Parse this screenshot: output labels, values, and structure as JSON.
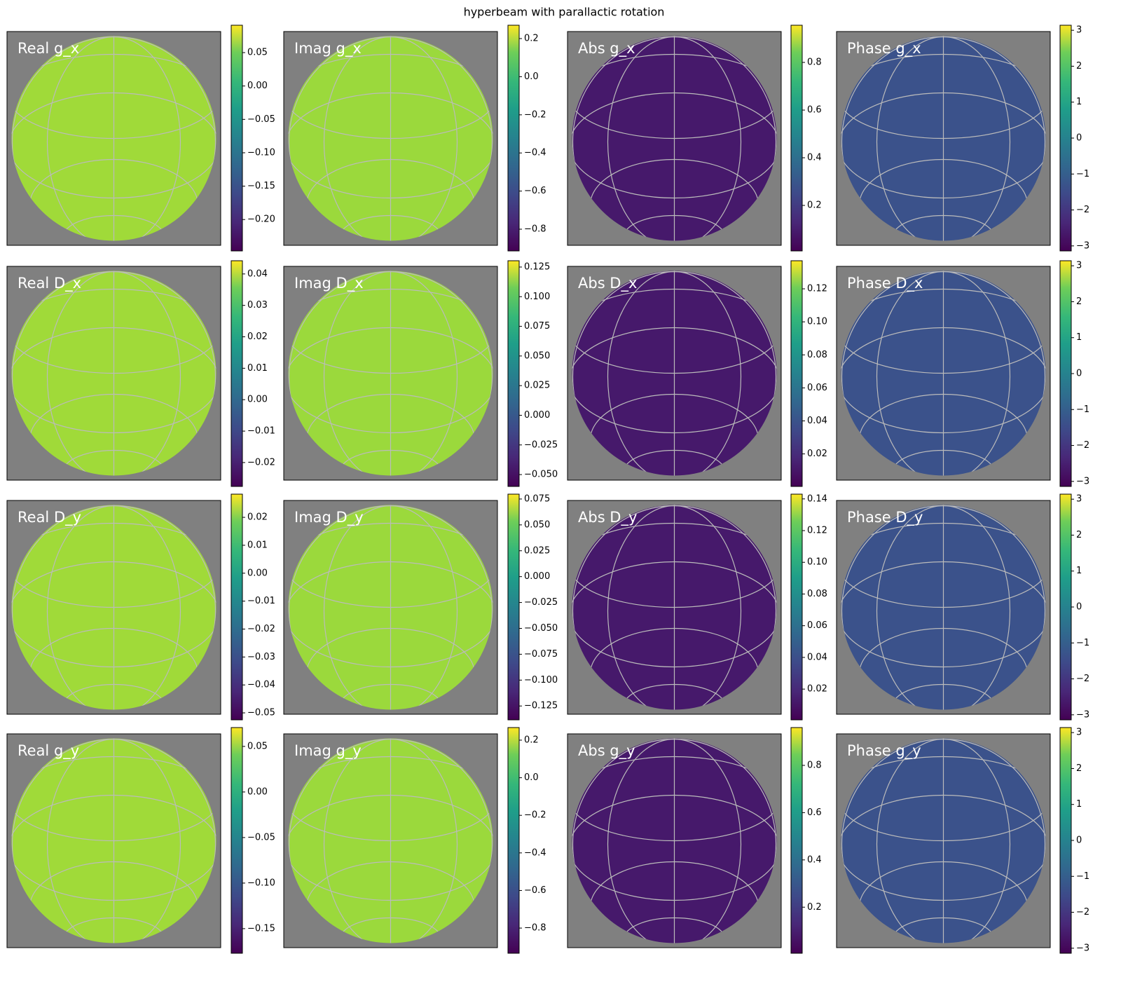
{
  "title": "hyperbeam with parallactic rotation",
  "chart_data": [
    {
      "type": "image",
      "title": "Real g_x",
      "colormap": "viridis",
      "clim": [
        -0.247,
        0.091
      ],
      "cticks": [
        {
          "value": 0.05,
          "label": "0.05"
        },
        {
          "value": 0,
          "label": "0.00"
        },
        {
          "value": -0.05,
          "label": "−0.05"
        },
        {
          "value": -0.1,
          "label": "−0.10"
        },
        {
          "value": -0.15,
          "label": "−0.15"
        },
        {
          "value": -0.2,
          "label": "−0.20"
        }
      ]
    },
    {
      "type": "image",
      "title": "Imag g_x",
      "colormap": "viridis",
      "clim": [
        -0.914,
        0.27
      ],
      "cticks": [
        0.2,
        {
          "value": 0,
          "label": "0.0"
        },
        {
          "value": -0.2,
          "label": "−0.2"
        },
        {
          "value": -0.4,
          "label": "−0.4"
        },
        {
          "value": -0.6,
          "label": "−0.6"
        },
        {
          "value": -0.8,
          "label": "−0.8"
        }
      ]
    },
    {
      "type": "image",
      "title": "Abs g_x",
      "colormap": "viridis",
      "clim": [
        0.009,
        0.956
      ],
      "cticks": [
        0.8,
        0.6,
        0.4,
        0.2
      ]
    },
    {
      "type": "image",
      "title": "Phase g_x",
      "colormap": "viridis",
      "clim": [
        -3.14,
        3.14
      ],
      "cticks": [
        3,
        2,
        1,
        0,
        {
          "value": -1,
          "label": "−1"
        },
        {
          "value": -2,
          "label": "−2"
        },
        {
          "value": -3,
          "label": "−3"
        }
      ]
    },
    {
      "type": "image",
      "title": "Real D_x",
      "colormap": "viridis",
      "clim": [
        -0.0276,
        0.0442
      ],
      "cticks": [
        0.04,
        0.03,
        0.02,
        0.01,
        {
          "value": 0,
          "label": "0.00"
        },
        {
          "value": -0.01,
          "label": "−0.01"
        },
        {
          "value": -0.02,
          "label": "−0.02"
        }
      ]
    },
    {
      "type": "image",
      "title": "Imag D_x",
      "colormap": "viridis",
      "clim": [
        -0.06,
        0.1303
      ],
      "cticks": [
        0.125,
        {
          "value": 0.1,
          "label": "0.100"
        },
        0.075,
        {
          "value": 0.05,
          "label": "0.050"
        },
        0.025,
        {
          "value": 0,
          "label": "0.000"
        },
        {
          "value": -0.025,
          "label": "−0.025"
        },
        {
          "value": -0.05,
          "label": "−0.050"
        }
      ]
    },
    {
      "type": "image",
      "title": "Abs D_x",
      "colormap": "viridis",
      "clim": [
        0.0003,
        0.137
      ],
      "cticks": [
        0.12,
        {
          "value": 0.1,
          "label": "0.10"
        },
        0.08,
        0.06,
        0.04,
        0.02
      ]
    },
    {
      "type": "image",
      "title": "Phase D_x",
      "colormap": "viridis",
      "clim": [
        -3.14,
        3.14
      ],
      "cticks": [
        3,
        2,
        1,
        0,
        {
          "value": -1,
          "label": "−1"
        },
        {
          "value": -2,
          "label": "−2"
        },
        {
          "value": -3,
          "label": "−3"
        }
      ]
    },
    {
      "type": "image",
      "title": "Real D_y",
      "colormap": "viridis",
      "clim": [
        -0.0525,
        0.0283
      ],
      "cticks": [
        0.02,
        0.01,
        {
          "value": 0,
          "label": "0.00"
        },
        {
          "value": -0.01,
          "label": "−0.01"
        },
        {
          "value": -0.02,
          "label": "−0.02"
        },
        {
          "value": -0.03,
          "label": "−0.03"
        },
        {
          "value": -0.04,
          "label": "−0.04"
        },
        {
          "value": -0.05,
          "label": "−0.05"
        }
      ]
    },
    {
      "type": "image",
      "title": "Imag D_y",
      "colormap": "viridis",
      "clim": [
        -0.1384,
        0.0797
      ],
      "cticks": [
        0.075,
        {
          "value": 0.05,
          "label": "0.050"
        },
        0.025,
        {
          "value": 0,
          "label": "0.000"
        },
        {
          "value": -0.025,
          "label": "−0.025"
        },
        {
          "value": -0.05,
          "label": "−0.050"
        },
        {
          "value": -0.075,
          "label": "−0.075"
        },
        {
          "value": -0.1,
          "label": "−0.100"
        },
        {
          "value": -0.125,
          "label": "−0.125"
        }
      ]
    },
    {
      "type": "image",
      "title": "Abs D_y",
      "colormap": "viridis",
      "clim": [
        0.0006,
        0.143
      ],
      "cticks": [
        0.14,
        0.12,
        {
          "value": 0.1,
          "label": "0.10"
        },
        0.08,
        0.06,
        0.04,
        0.02
      ]
    },
    {
      "type": "image",
      "title": "Phase D_y",
      "colormap": "viridis",
      "clim": [
        -3.14,
        3.14
      ],
      "cticks": [
        3,
        2,
        1,
        0,
        {
          "value": -1,
          "label": "−1"
        },
        {
          "value": -2,
          "label": "−2"
        },
        {
          "value": -3,
          "label": "−3"
        }
      ]
    },
    {
      "type": "image",
      "title": "Real g_y",
      "colormap": "viridis",
      "clim": [
        -0.177,
        0.0707
      ],
      "cticks": [
        0.05,
        {
          "value": 0,
          "label": "0.00"
        },
        {
          "value": -0.05,
          "label": "−0.05"
        },
        {
          "value": -0.1,
          "label": "−0.10"
        },
        {
          "value": -0.15,
          "label": "−0.15"
        }
      ]
    },
    {
      "type": "image",
      "title": "Imag g_y",
      "colormap": "viridis",
      "clim": [
        -0.934,
        0.267
      ],
      "cticks": [
        0.2,
        {
          "value": 0,
          "label": "0.0"
        },
        {
          "value": -0.2,
          "label": "−0.2"
        },
        {
          "value": -0.4,
          "label": "−0.4"
        },
        {
          "value": -0.6,
          "label": "−0.6"
        },
        {
          "value": -0.8,
          "label": "−0.8"
        }
      ]
    },
    {
      "type": "image",
      "title": "Abs g_y",
      "colormap": "viridis",
      "clim": [
        0.005,
        0.96
      ],
      "cticks": [
        0.8,
        0.6,
        0.4,
        0.2
      ]
    },
    {
      "type": "image",
      "title": "Phase g_y",
      "colormap": "viridis",
      "clim": [
        -3.14,
        3.14
      ],
      "cticks": [
        3,
        2,
        1,
        0,
        {
          "value": -1,
          "label": "−1"
        },
        {
          "value": -2,
          "label": "−2"
        },
        {
          "value": -3,
          "label": "−3"
        }
      ]
    }
  ]
}
